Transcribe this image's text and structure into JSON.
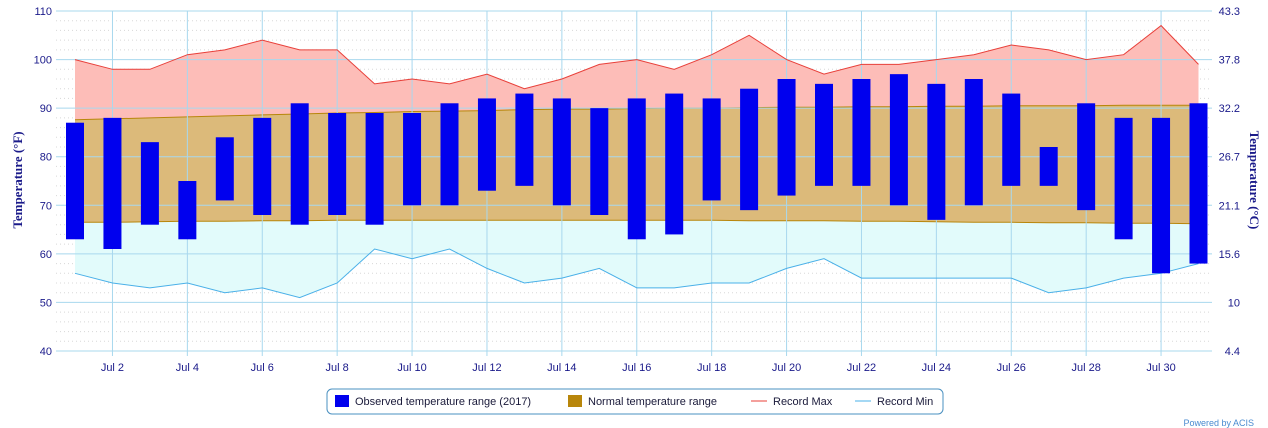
{
  "chart_data": {
    "type": "bar",
    "x_days": [
      1,
      2,
      3,
      4,
      5,
      6,
      7,
      8,
      9,
      10,
      11,
      12,
      13,
      14,
      15,
      16,
      17,
      18,
      19,
      20,
      21,
      22,
      23,
      24,
      25,
      26,
      27,
      28,
      29,
      30,
      31
    ],
    "x_tick_labels": [
      "Jul 2",
      "Jul 4",
      "Jul 6",
      "Jul 8",
      "Jul 10",
      "Jul 12",
      "Jul 14",
      "Jul 16",
      "Jul 18",
      "Jul 20",
      "Jul 22",
      "Jul 24",
      "Jul 26",
      "Jul 28",
      "Jul 30"
    ],
    "x_tick_days": [
      2,
      4,
      6,
      8,
      10,
      12,
      14,
      16,
      18,
      20,
      22,
      24,
      26,
      28,
      30
    ],
    "ylabel_left": "Temperature (°F)",
    "ylabel_right": "Temperature (°C)",
    "ylim": [
      40,
      110
    ],
    "y_ticks_left": [
      "40",
      "50",
      "60",
      "70",
      "80",
      "90",
      "100",
      "110"
    ],
    "y_tick_values_left": [
      40,
      50,
      60,
      70,
      80,
      90,
      100,
      110
    ],
    "y_ticks_right": [
      "4.4",
      "10",
      "15.6",
      "21.1",
      "26.7",
      "32.2",
      "37.8",
      "43.3"
    ],
    "grid": true,
    "legend_position": "bottom",
    "series": [
      {
        "name": "Observed temperature range (2017)",
        "kind": "floating-bar",
        "color": "#0000ee",
        "low": [
          63,
          61,
          66,
          63,
          71,
          68,
          66,
          68,
          66,
          70,
          70,
          73,
          74,
          70,
          68,
          63,
          64,
          71,
          69,
          72,
          74,
          74,
          70,
          67,
          70,
          74,
          74,
          69,
          63,
          56,
          58
        ],
        "high": [
          87,
          88,
          83,
          75,
          84,
          88,
          91,
          89,
          89,
          89,
          91,
          92,
          93,
          92,
          90,
          92,
          93,
          92,
          94,
          96,
          95,
          96,
          97,
          95,
          96,
          93,
          82,
          91,
          88,
          88,
          91
        ]
      },
      {
        "name": "Normal temperature range",
        "kind": "area-range",
        "color": "#b8860b",
        "fill": "#dcba7a",
        "low": [
          66.5,
          66.5,
          66.6,
          66.7,
          66.7,
          66.8,
          66.8,
          66.9,
          66.9,
          66.9,
          66.9,
          66.9,
          66.9,
          66.9,
          66.9,
          66.9,
          66.9,
          66.9,
          66.8,
          66.8,
          66.8,
          66.7,
          66.7,
          66.6,
          66.5,
          66.5,
          66.4,
          66.4,
          66.3,
          66.3,
          66.2
        ],
        "high": [
          87.6,
          87.8,
          88.0,
          88.2,
          88.4,
          88.6,
          88.8,
          89.0,
          89.1,
          89.3,
          89.4,
          89.5,
          89.7,
          89.8,
          89.8,
          89.9,
          90.0,
          90.0,
          90.1,
          90.2,
          90.2,
          90.3,
          90.3,
          90.4,
          90.4,
          90.5,
          90.5,
          90.5,
          90.6,
          90.6,
          90.6
        ]
      },
      {
        "name": "Record Max",
        "kind": "line",
        "color": "#e8403a",
        "fill": "#fdbdb8",
        "values": [
          100,
          98,
          98,
          101,
          102,
          104,
          102,
          102,
          95,
          96,
          95,
          97,
          94,
          96,
          99,
          100,
          98,
          101,
          105,
          100,
          97,
          99,
          99,
          100,
          101,
          103,
          102,
          100,
          101,
          107,
          99
        ]
      },
      {
        "name": "Record Min",
        "kind": "line",
        "color": "#4ab0e8",
        "fill": "#e2fbfb",
        "values": [
          56,
          54,
          53,
          54,
          52,
          53,
          51,
          54,
          61,
          59,
          61,
          57,
          54,
          55,
          57,
          53,
          53,
          54,
          54,
          57,
          59,
          55,
          55,
          55,
          55,
          55,
          52,
          53,
          55,
          56,
          58
        ]
      }
    ],
    "credit": "Powered by ACIS"
  }
}
